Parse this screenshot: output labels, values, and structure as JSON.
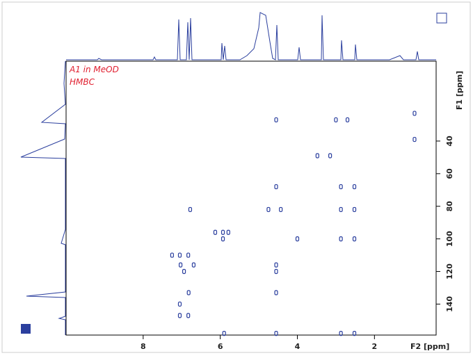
{
  "chart_data": {
    "type": "scatter",
    "annotations": [
      "A1 in MeOD",
      "HMBC"
    ],
    "xlabel": "F2 [ppm]",
    "ylabel": "F1 [ppm]",
    "xlim": [
      10,
      0.4
    ],
    "ylim": [
      -9,
      159
    ],
    "xticks": [
      8,
      6,
      4,
      2
    ],
    "yticks": [
      40,
      60,
      80,
      100,
      120,
      140
    ],
    "series": [
      {
        "name": "cross peaks",
        "color": "#2b3f9e",
        "x": [
          0.96,
          0.96,
          4.55,
          3.0,
          2.7,
          3.48,
          3.15,
          4.55,
          2.87,
          2.52,
          6.78,
          4.75,
          4.43,
          2.87,
          2.52,
          6.13,
          5.93,
          5.79,
          5.93,
          4.0,
          2.87,
          2.52,
          7.25,
          7.05,
          6.83,
          7.03,
          6.69,
          4.55,
          6.94,
          4.55,
          6.82,
          4.55,
          7.05,
          7.05,
          6.83,
          5.9,
          4.55,
          2.87,
          2.52
        ],
        "values": [
          23,
          39,
          27,
          27,
          27,
          49,
          49,
          68,
          68,
          68,
          82,
          82,
          82,
          82,
          82,
          96,
          96,
          96,
          100,
          100,
          100,
          100,
          110,
          110,
          110,
          116,
          116,
          116,
          120,
          120,
          133,
          133,
          140,
          147,
          147,
          158,
          158,
          158,
          158
        ]
      }
    ]
  }
}
